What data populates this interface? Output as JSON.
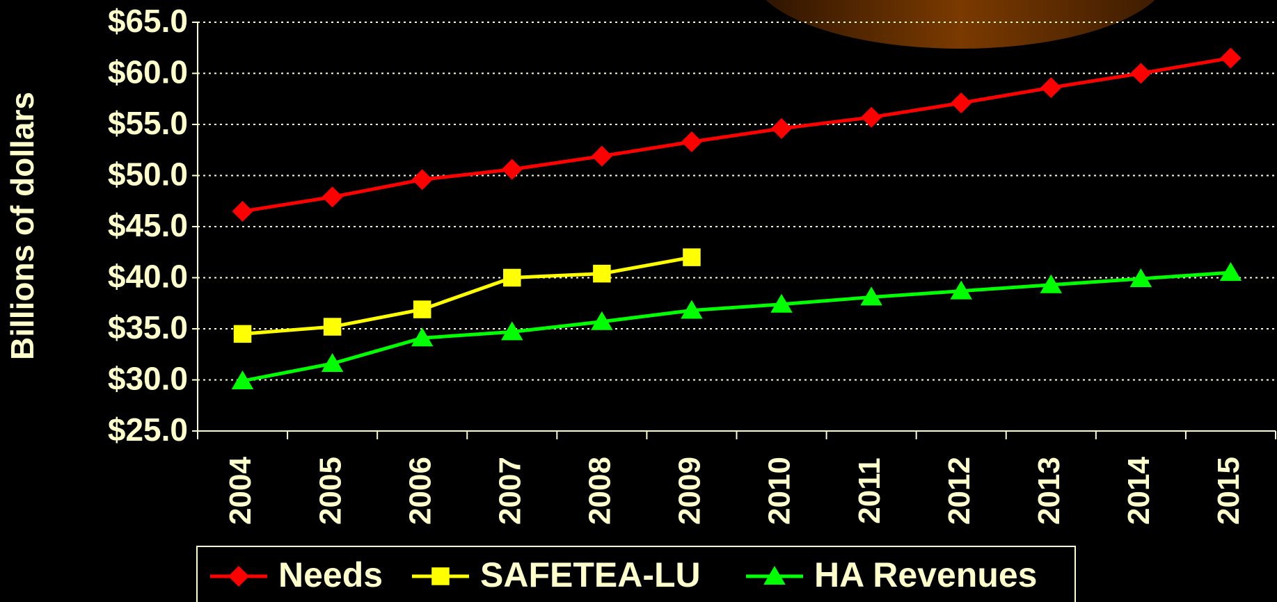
{
  "chart_data": {
    "type": "line",
    "y_label": "Billions of dollars",
    "categories": [
      "2004",
      "2005",
      "2006",
      "2007",
      "2008",
      "2009",
      "2010",
      "2011",
      "2012",
      "2013",
      "2014",
      "2015"
    ],
    "series": [
      {
        "name": "Needs",
        "color": "#ff0000",
        "marker": "diamond",
        "values": [
          46.5,
          47.9,
          49.6,
          50.6,
          51.9,
          53.3,
          54.6,
          55.7,
          57.1,
          58.6,
          60.0,
          61.5
        ]
      },
      {
        "name": "SAFETEA-LU",
        "color": "#ffff00",
        "marker": "square",
        "values": [
          34.5,
          35.2,
          36.9,
          40.0,
          40.4,
          42.0,
          null,
          null,
          null,
          null,
          null,
          null
        ]
      },
      {
        "name": "HA Revenues",
        "color": "#00ff00",
        "marker": "triangle",
        "values": [
          29.9,
          31.6,
          34.1,
          34.7,
          35.7,
          36.8,
          37.4,
          38.1,
          38.7,
          39.3,
          39.9,
          40.5
        ]
      }
    ],
    "ylim": [
      25,
      65
    ],
    "yticks": [
      {
        "value": 25,
        "label": "$25.0"
      },
      {
        "value": 30,
        "label": "$30.0"
      },
      {
        "value": 35,
        "label": "$35.0"
      },
      {
        "value": 40,
        "label": "$40.0"
      },
      {
        "value": 45,
        "label": "$45.0"
      },
      {
        "value": 50,
        "label": "$50.0"
      },
      {
        "value": 55,
        "label": "$55.0"
      },
      {
        "value": 60,
        "label": "$60.0"
      },
      {
        "value": 65,
        "label": "$65.0"
      }
    ],
    "grid": true
  }
}
